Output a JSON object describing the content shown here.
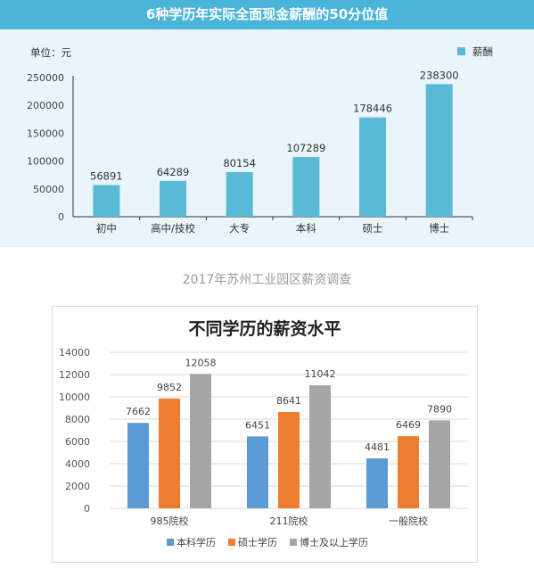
{
  "top": {
    "title": "6种学历年实际全面现金薪酬的50分位值",
    "unit": "单位：元",
    "legend": "薪酬",
    "color": "#5ab9d6"
  },
  "caption": "2017年苏州工业园区薪资调查",
  "bottom": {
    "title": "不同学历的薪资水平"
  },
  "chart_data": [
    {
      "type": "bar",
      "title": "6种学历年实际全面现金薪酬的50分位值",
      "unit_label": "单位：元",
      "categories": [
        "初中",
        "高中/技校",
        "大专",
        "本科",
        "硕士",
        "博士"
      ],
      "series": [
        {
          "name": "薪酬",
          "color": "#5ab9d6",
          "values": [
            56891,
            64289,
            80154,
            107289,
            178446,
            238300
          ]
        }
      ],
      "ylim": [
        0,
        250000
      ],
      "yticks": [
        0,
        50000,
        100000,
        150000,
        200000,
        250000
      ],
      "grid": false,
      "legend": "top-right"
    },
    {
      "type": "bar",
      "title": "不同学历的薪资水平",
      "categories": [
        "985院校",
        "211院校",
        "一般院校"
      ],
      "series": [
        {
          "name": "本科学历",
          "color": "#5b9bd5",
          "values": [
            7662,
            6451,
            4481
          ]
        },
        {
          "name": "硕士学历",
          "color": "#ed7d31",
          "values": [
            9852,
            8641,
            6469
          ]
        },
        {
          "name": "博士及以上学历",
          "color": "#a5a5a5",
          "values": [
            12058,
            11042,
            7890
          ]
        }
      ],
      "ylim": [
        0,
        14000
      ],
      "yticks": [
        0,
        2000,
        4000,
        6000,
        8000,
        10000,
        12000,
        14000
      ],
      "grid": true,
      "legend": "bottom"
    }
  ]
}
